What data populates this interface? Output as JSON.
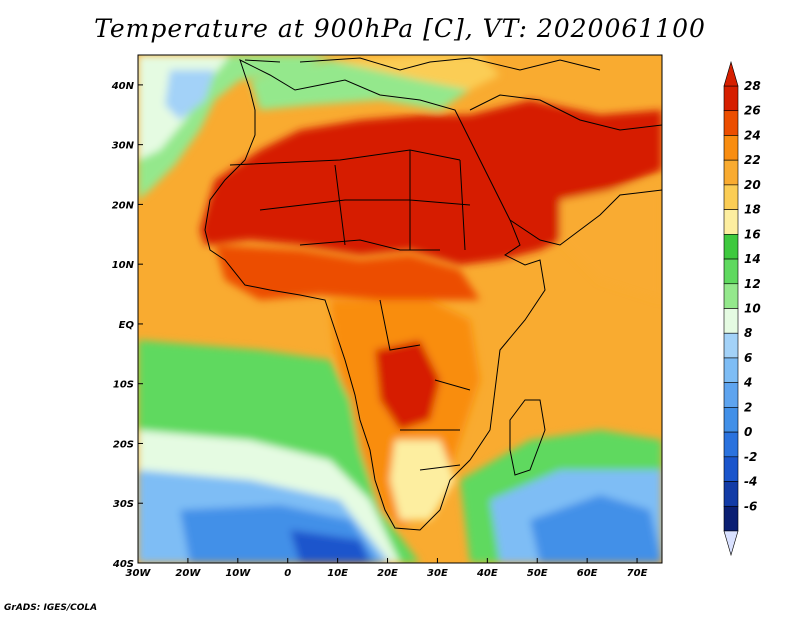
{
  "title": "Temperature at 900hPa [C], VT: 2020061100",
  "credit": "GrADS: IGES/COLA",
  "map": {
    "lon_range": [
      -30,
      75
    ],
    "lat_range": [
      -40,
      45
    ],
    "lat_ticks": [
      "40N",
      "30N",
      "20N",
      "10N",
      "EQ",
      "10S",
      "20S",
      "30S",
      "40S"
    ],
    "lon_ticks": [
      "30W",
      "20W",
      "10W",
      "0",
      "10E",
      "20E",
      "30E",
      "40E",
      "50E",
      "60E",
      "70E"
    ]
  },
  "colorbar": {
    "labels": [
      "28",
      "26",
      "24",
      "22",
      "20",
      "18",
      "16",
      "14",
      "12",
      "10",
      "8",
      "6",
      "4",
      "2",
      "0",
      "-2",
      "-4",
      "-6"
    ],
    "colors": [
      "#d61f00",
      "#ec4e00",
      "#f98d10",
      "#f9ab30",
      "#fbcd55",
      "#fdeea0",
      "#3ec93e",
      "#5fd95f",
      "#94e88c",
      "#e5fbe2",
      "#a3d2f8",
      "#7ebdf5",
      "#5ea4ef",
      "#4290e8",
      "#2a72de",
      "#1a55cc",
      "#123ba6",
      "#0b1f73"
    ],
    "under_color": "#d9e1ff",
    "over_color": "#d61f00"
  },
  "ocean_color": "#f9ab30"
}
